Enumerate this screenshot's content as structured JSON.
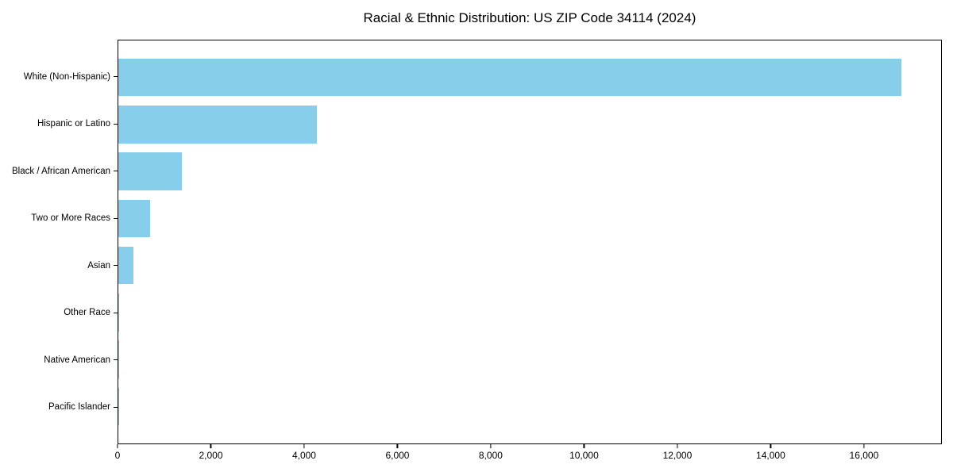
{
  "title": "Racial & Ethnic Distribution: US ZIP Code 34114 (2024)",
  "colors": {
    "bar": "#87CEEB",
    "axis": "#000000",
    "background": "#ffffff",
    "text": "#000000"
  },
  "chart_data": {
    "type": "bar",
    "orientation": "horizontal",
    "title": "Racial & Ethnic Distribution: US ZIP Code 34114 (2024)",
    "categories": [
      "White (Non-Hispanic)",
      "Hispanic or Latino",
      "Black / African American",
      "Two or More Races",
      "Asian",
      "Other Race",
      "Native American",
      "Pacific Islander"
    ],
    "values": [
      16820,
      4270,
      1370,
      690,
      330,
      20,
      15,
      5
    ],
    "bar_color": "#87CEEB",
    "xlabel": "",
    "ylabel": "",
    "xlim": [
      0,
      17670
    ],
    "xticks": [
      0,
      2000,
      4000,
      6000,
      8000,
      10000,
      12000,
      14000,
      16000
    ],
    "xtick_labels": [
      "0",
      "2,000",
      "4,000",
      "6,000",
      "8,000",
      "10,000",
      "12,000",
      "14,000",
      "16,000"
    ],
    "grid": false,
    "legend": null
  }
}
